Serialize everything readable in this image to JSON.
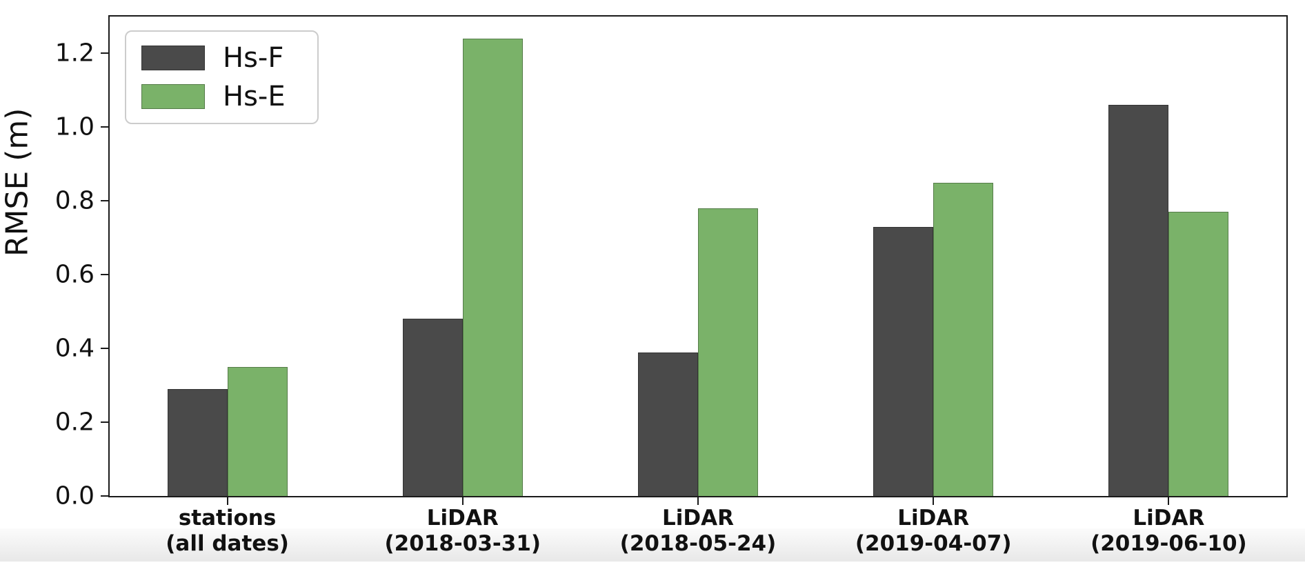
{
  "chart_data": {
    "type": "bar",
    "title": "",
    "xlabel": "",
    "ylabel": "RMSE (m)",
    "ylim": [
      0,
      1.3
    ],
    "yticks": [
      "0.0",
      "0.2",
      "0.4",
      "0.6",
      "0.8",
      "1.0",
      "1.2"
    ],
    "categories": [
      {
        "line1": "stations",
        "line2": "(all dates)"
      },
      {
        "line1": "LiDAR",
        "line2": "(2018-03-31)"
      },
      {
        "line1": "LiDAR",
        "line2": "(2018-05-24)"
      },
      {
        "line1": "LiDAR",
        "line2": "(2019-04-07)"
      },
      {
        "line1": "LiDAR",
        "line2": "(2019-06-10)"
      }
    ],
    "series": [
      {
        "name": "Hs-F",
        "color": "#4a4a4a",
        "values": [
          0.29,
          0.48,
          0.39,
          0.73,
          1.06
        ]
      },
      {
        "name": "Hs-E",
        "color": "#7ab269",
        "values": [
          0.35,
          1.24,
          0.78,
          0.85,
          0.77
        ]
      }
    ],
    "legend_position": "upper left",
    "grid": false
  },
  "colors": {
    "axis": "#1a1a1a",
    "background": "#ffffff",
    "bar_edge": "rgba(0,0,0,0.3)"
  }
}
